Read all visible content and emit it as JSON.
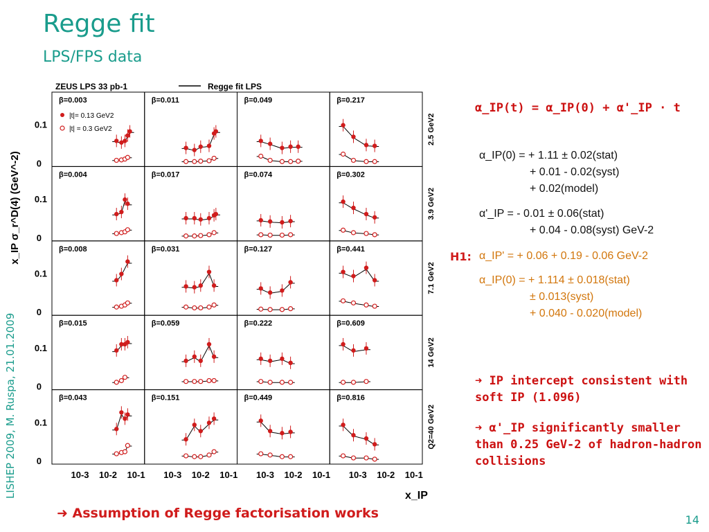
{
  "slide": {
    "title": "Regge fit",
    "subtitle": "LPS/FPS data",
    "sidebar": "LISHEP  2009, M. Ruspa, 21.01.2009",
    "page_number": "14",
    "conclusion": "Assumption of Regge factorisation works"
  },
  "right_panel": {
    "formula": "α_IP(t) = α_IP(0) + α'_IP · t",
    "zeus_alpha0_line1": "α_IP(0) =  + 1.11 ± 0.02(stat)",
    "zeus_alpha0_line2": "+ 0.01 - 0.02(syst)",
    "zeus_alpha0_line3": "+ 0.02(model)",
    "zeus_alphap_line1": "α'_IP    =  - 0.01 ± 0.06(stat)",
    "zeus_alphap_line2": "+ 0.04 - 0.08(syst) GeV-2",
    "h1_label": "H1:",
    "h1_alphap": "α_IP'    =  + 0.06 + 0.19 - 0.06 GeV-2",
    "h1_alpha0_line1": "α_IP(0) = + 1.114 ± 0.018(stat)",
    "h1_alpha0_line2": "± 0.013(syst)",
    "h1_alpha0_line3": "+ 0.040 - 0.020(model)",
    "bullet1": "IP intercept consistent with soft IP (1.096)",
    "bullet2": "α'_IP significantly smaller than 0.25 GeV-2 of hadron-hadron collisions"
  },
  "colors": {
    "accent": "#1a9c8c",
    "red": "#d01c1c",
    "orange": "#d2760c"
  },
  "chart_data": {
    "type": "scatter",
    "title": "ZEUS LPS 33 pb-1",
    "legend": [
      "Regge fit LPS",
      "|t|= 0.13 GeV2",
      "|t| = 0.3 GeV2"
    ],
    "ylabel": "x_IP σ_r^D(4) (GeV^-2)",
    "xlabel": "x_IP",
    "x_scale": "log",
    "xlim": [
      0.0001,
      0.2
    ],
    "ylim": [
      0,
      0.18
    ],
    "yticks": [
      "0",
      "0.1"
    ],
    "xticks": [
      "10-3",
      "10-2",
      "10-1"
    ],
    "q2_rows": [
      "2.5 GeV2",
      "3.9 GeV2",
      "7.1 GeV2",
      "14 GeV2",
      "Q2=40 GeV2"
    ],
    "beta_grid": [
      [
        "β=0.003",
        "β=0.011",
        "β=0.049",
        "β=0.217"
      ],
      [
        "β=0.004",
        "β=0.017",
        "β=0.074",
        "β=0.302"
      ],
      [
        "β=0.008",
        "β=0.031",
        "β=0.127",
        "β=0.441"
      ],
      [
        "β=0.015",
        "β=0.059",
        "β=0.222",
        "β=0.609"
      ],
      [
        "β=0.043",
        "β=0.151",
        "β=0.449",
        "β=0.816"
      ]
    ],
    "panels": [
      [
        {
          "t013": [
            [
              0.02,
              0.062
            ],
            [
              0.03,
              0.058
            ],
            [
              0.04,
              0.062
            ],
            [
              0.05,
              0.075
            ],
            [
              0.06,
              0.085
            ]
          ],
          "t03": [
            [
              0.02,
              0.015
            ],
            [
              0.03,
              0.016
            ],
            [
              0.04,
              0.018
            ],
            [
              0.05,
              0.022
            ]
          ]
        },
        {
          "t013": [
            [
              0.003,
              0.045
            ],
            [
              0.006,
              0.04
            ],
            [
              0.01,
              0.048
            ],
            [
              0.02,
              0.05
            ],
            [
              0.03,
              0.08
            ],
            [
              0.035,
              0.085
            ]
          ],
          "t03": [
            [
              0.003,
              0.012
            ],
            [
              0.006,
              0.012
            ],
            [
              0.01,
              0.013
            ],
            [
              0.02,
              0.014
            ],
            [
              0.03,
              0.02
            ]
          ]
        },
        {
          "t013": [
            [
              0.0007,
              0.062
            ],
            [
              0.0015,
              0.055
            ],
            [
              0.004,
              0.045
            ],
            [
              0.008,
              0.048
            ],
            [
              0.015,
              0.048
            ]
          ],
          "t03": [
            [
              0.0007,
              0.025
            ],
            [
              0.0015,
              0.015
            ],
            [
              0.004,
              0.012
            ],
            [
              0.008,
              0.012
            ],
            [
              0.015,
              0.013
            ]
          ]
        },
        {
          "t013": [
            [
              0.0003,
              0.1
            ],
            [
              0.0007,
              0.072
            ],
            [
              0.002,
              0.052
            ],
            [
              0.004,
              0.05
            ]
          ],
          "t03": [
            [
              0.0003,
              0.03
            ],
            [
              0.0007,
              0.015
            ],
            [
              0.002,
              0.012
            ],
            [
              0.004,
              0.012
            ]
          ]
        }
      ],
      [
        {
          "t013": [
            [
              0.02,
              0.065
            ],
            [
              0.03,
              0.07
            ],
            [
              0.04,
              0.1
            ],
            [
              0.05,
              0.09
            ]
          ],
          "t03": [
            [
              0.02,
              0.018
            ],
            [
              0.03,
              0.02
            ],
            [
              0.04,
              0.022
            ],
            [
              0.05,
              0.027
            ]
          ]
        },
        {
          "t013": [
            [
              0.003,
              0.055
            ],
            [
              0.006,
              0.055
            ],
            [
              0.01,
              0.052
            ],
            [
              0.02,
              0.055
            ],
            [
              0.03,
              0.062
            ],
            [
              0.035,
              0.065
            ]
          ],
          "t03": [
            [
              0.003,
              0.012
            ],
            [
              0.006,
              0.012
            ],
            [
              0.01,
              0.013
            ],
            [
              0.02,
              0.015
            ],
            [
              0.03,
              0.02
            ]
          ]
        },
        {
          "t013": [
            [
              0.0007,
              0.05
            ],
            [
              0.0015,
              0.047
            ],
            [
              0.004,
              0.045
            ],
            [
              0.008,
              0.048
            ]
          ],
          "t03": [
            [
              0.0007,
              0.015
            ],
            [
              0.0015,
              0.014
            ],
            [
              0.004,
              0.014
            ],
            [
              0.008,
              0.015
            ]
          ]
        },
        {
          "t013": [
            [
              0.0003,
              0.095
            ],
            [
              0.0007,
              0.08
            ],
            [
              0.002,
              0.065
            ],
            [
              0.004,
              0.057
            ]
          ],
          "t03": [
            [
              0.0003,
              0.026
            ],
            [
              0.0007,
              0.02
            ],
            [
              0.002,
              0.018
            ],
            [
              0.004,
              0.015
            ]
          ]
        }
      ],
      [
        {
          "t013": [
            [
              0.02,
              0.085
            ],
            [
              0.03,
              0.1
            ],
            [
              0.05,
              0.13
            ]
          ],
          "t03": [
            [
              0.02,
              0.02
            ],
            [
              0.03,
              0.022
            ],
            [
              0.04,
              0.025
            ],
            [
              0.05,
              0.03
            ]
          ]
        },
        {
          "t013": [
            [
              0.003,
              0.07
            ],
            [
              0.006,
              0.068
            ],
            [
              0.01,
              0.072
            ],
            [
              0.02,
              0.105
            ],
            [
              0.03,
              0.072
            ]
          ],
          "t03": [
            [
              0.003,
              0.02
            ],
            [
              0.006,
              0.018
            ],
            [
              0.01,
              0.018
            ],
            [
              0.02,
              0.02
            ],
            [
              0.03,
              0.025
            ]
          ]
        },
        {
          "t013": [
            [
              0.0007,
              0.065
            ],
            [
              0.0015,
              0.055
            ],
            [
              0.004,
              0.06
            ],
            [
              0.008,
              0.08
            ]
          ],
          "t03": [
            [
              0.0007,
              0.015
            ],
            [
              0.0015,
              0.014
            ],
            [
              0.004,
              0.014
            ],
            [
              0.008,
              0.016
            ]
          ]
        },
        {
          "t013": [
            [
              0.0003,
              0.105
            ],
            [
              0.0007,
              0.095
            ],
            [
              0.002,
              0.115
            ],
            [
              0.004,
              0.085
            ]
          ],
          "t03": [
            [
              0.0003,
              0.035
            ],
            [
              0.0007,
              0.03
            ],
            [
              0.002,
              0.025
            ],
            [
              0.004,
              0.022
            ]
          ]
        }
      ],
      [
        {
          "t013": [
            [
              0.02,
              0.095
            ],
            [
              0.03,
              0.11
            ],
            [
              0.04,
              0.11
            ],
            [
              0.05,
              0.115
            ]
          ],
          "t03": [
            [
              0.02,
              0.018
            ],
            [
              0.03,
              0.022
            ],
            [
              0.04,
              0.03
            ]
          ]
        },
        {
          "t013": [
            [
              0.003,
              0.07
            ],
            [
              0.006,
              0.08
            ],
            [
              0.01,
              0.07
            ],
            [
              0.02,
              0.11
            ],
            [
              0.03,
              0.08
            ]
          ],
          "t03": [
            [
              0.003,
              0.02
            ],
            [
              0.006,
              0.02
            ],
            [
              0.01,
              0.02
            ],
            [
              0.02,
              0.022
            ],
            [
              0.03,
              0.022
            ]
          ]
        },
        {
          "t013": [
            [
              0.0007,
              0.075
            ],
            [
              0.0015,
              0.07
            ],
            [
              0.004,
              0.075
            ],
            [
              0.008,
              0.065
            ]
          ],
          "t03": [
            [
              0.0007,
              0.02
            ],
            [
              0.0015,
              0.018
            ],
            [
              0.004,
              0.018
            ],
            [
              0.008,
              0.018
            ]
          ]
        },
        {
          "t013": [
            [
              0.0003,
              0.11
            ],
            [
              0.0007,
              0.095
            ],
            [
              0.002,
              0.1
            ]
          ],
          "t03": [
            [
              0.0003,
              0.018
            ],
            [
              0.0007,
              0.018
            ],
            [
              0.002,
              0.02
            ]
          ]
        }
      ],
      [
        {
          "t013": [
            [
              0.02,
              0.085
            ],
            [
              0.03,
              0.125
            ],
            [
              0.04,
              0.11
            ],
            [
              0.05,
              0.12
            ]
          ],
          "t03": [
            [
              0.02,
              0.025
            ],
            [
              0.03,
              0.028
            ],
            [
              0.04,
              0.03
            ],
            [
              0.05,
              0.045
            ]
          ]
        },
        {
          "t013": [
            [
              0.003,
              0.06
            ],
            [
              0.006,
              0.095
            ],
            [
              0.01,
              0.08
            ],
            [
              0.02,
              0.1
            ],
            [
              0.03,
              0.11
            ]
          ],
          "t03": [
            [
              0.003,
              0.02
            ],
            [
              0.006,
              0.018
            ],
            [
              0.01,
              0.018
            ],
            [
              0.02,
              0.022
            ],
            [
              0.03,
              0.03
            ]
          ]
        },
        {
          "t013": [
            [
              0.0007,
              0.105
            ],
            [
              0.0015,
              0.08
            ],
            [
              0.004,
              0.075
            ],
            [
              0.008,
              0.078
            ]
          ],
          "t03": [
            [
              0.0007,
              0.025
            ],
            [
              0.0015,
              0.022
            ],
            [
              0.004,
              0.018
            ],
            [
              0.008,
              0.018
            ]
          ]
        },
        {
          "t013": [
            [
              0.0003,
              0.095
            ],
            [
              0.0007,
              0.07
            ],
            [
              0.002,
              0.062
            ],
            [
              0.004,
              0.048
            ]
          ],
          "t03": [
            [
              0.0003,
              0.02
            ],
            [
              0.0007,
              0.015
            ],
            [
              0.002,
              0.015
            ],
            [
              0.004,
              0.012
            ]
          ]
        }
      ]
    ]
  }
}
